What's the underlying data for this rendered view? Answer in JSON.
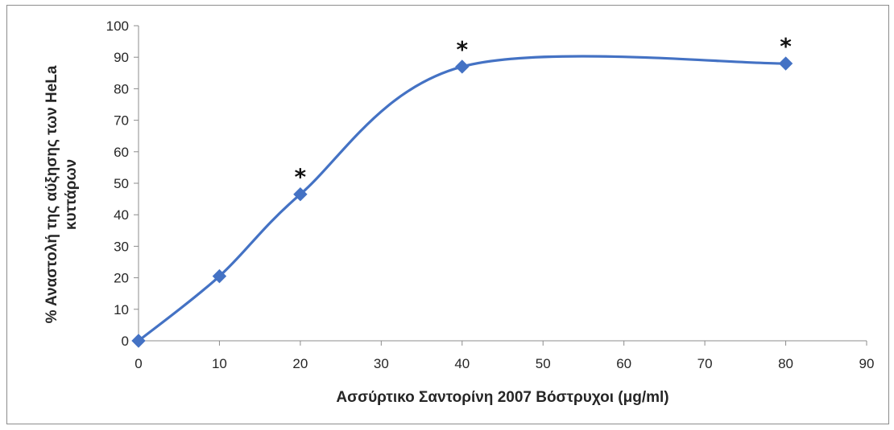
{
  "chart_data": {
    "type": "scatter",
    "title": "",
    "xlabel": "Ασσύρτικο Σαντορίνη 2007 Βόστρυχοι (μg/ml)",
    "ylabel_lines": [
      "% Αναστολή της αύξησης των HeLa",
      "κυττάρων"
    ],
    "xlim": [
      0,
      90
    ],
    "ylim": [
      0,
      100
    ],
    "x_ticks": [
      0,
      10,
      20,
      30,
      40,
      50,
      60,
      70,
      80,
      90
    ],
    "y_ticks": [
      0,
      10,
      20,
      30,
      40,
      50,
      60,
      70,
      80,
      90,
      100
    ],
    "grid": false,
    "smoothed_line": true,
    "marker": "diamond",
    "series_color": "#4472C4",
    "series": [
      {
        "x": [
          0,
          10,
          20,
          40,
          80
        ],
        "y": [
          0,
          20.5,
          46.5,
          87,
          88
        ]
      }
    ],
    "annotations": [
      {
        "x": 20,
        "y": 46.5,
        "text": "*"
      },
      {
        "x": 40,
        "y": 87,
        "text": "*"
      },
      {
        "x": 80,
        "y": 88,
        "text": "*"
      }
    ]
  }
}
